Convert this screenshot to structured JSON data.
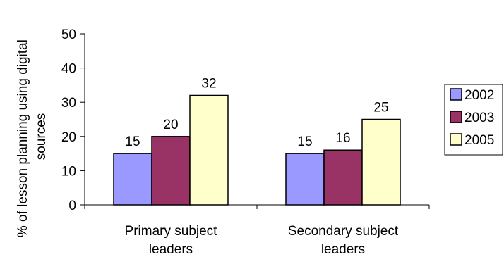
{
  "chart_data": {
    "type": "bar",
    "title": "",
    "xlabel": "",
    "ylabel": "% of lesson planning using digital sources",
    "ylim": [
      0,
      50
    ],
    "yticks": [
      0,
      10,
      20,
      30,
      40,
      50
    ],
    "categories": [
      "Primary subject leaders",
      "Secondary subject leaders"
    ],
    "series": [
      {
        "name": "2002",
        "values": [
          15,
          15
        ],
        "color": "#9999ff"
      },
      {
        "name": "2003",
        "values": [
          20,
          16
        ],
        "color": "#993366"
      },
      {
        "name": "2005",
        "values": [
          32,
          25
        ],
        "color": "#ffffcc"
      }
    ],
    "data_labels": true,
    "grid": false,
    "legend": "right"
  }
}
